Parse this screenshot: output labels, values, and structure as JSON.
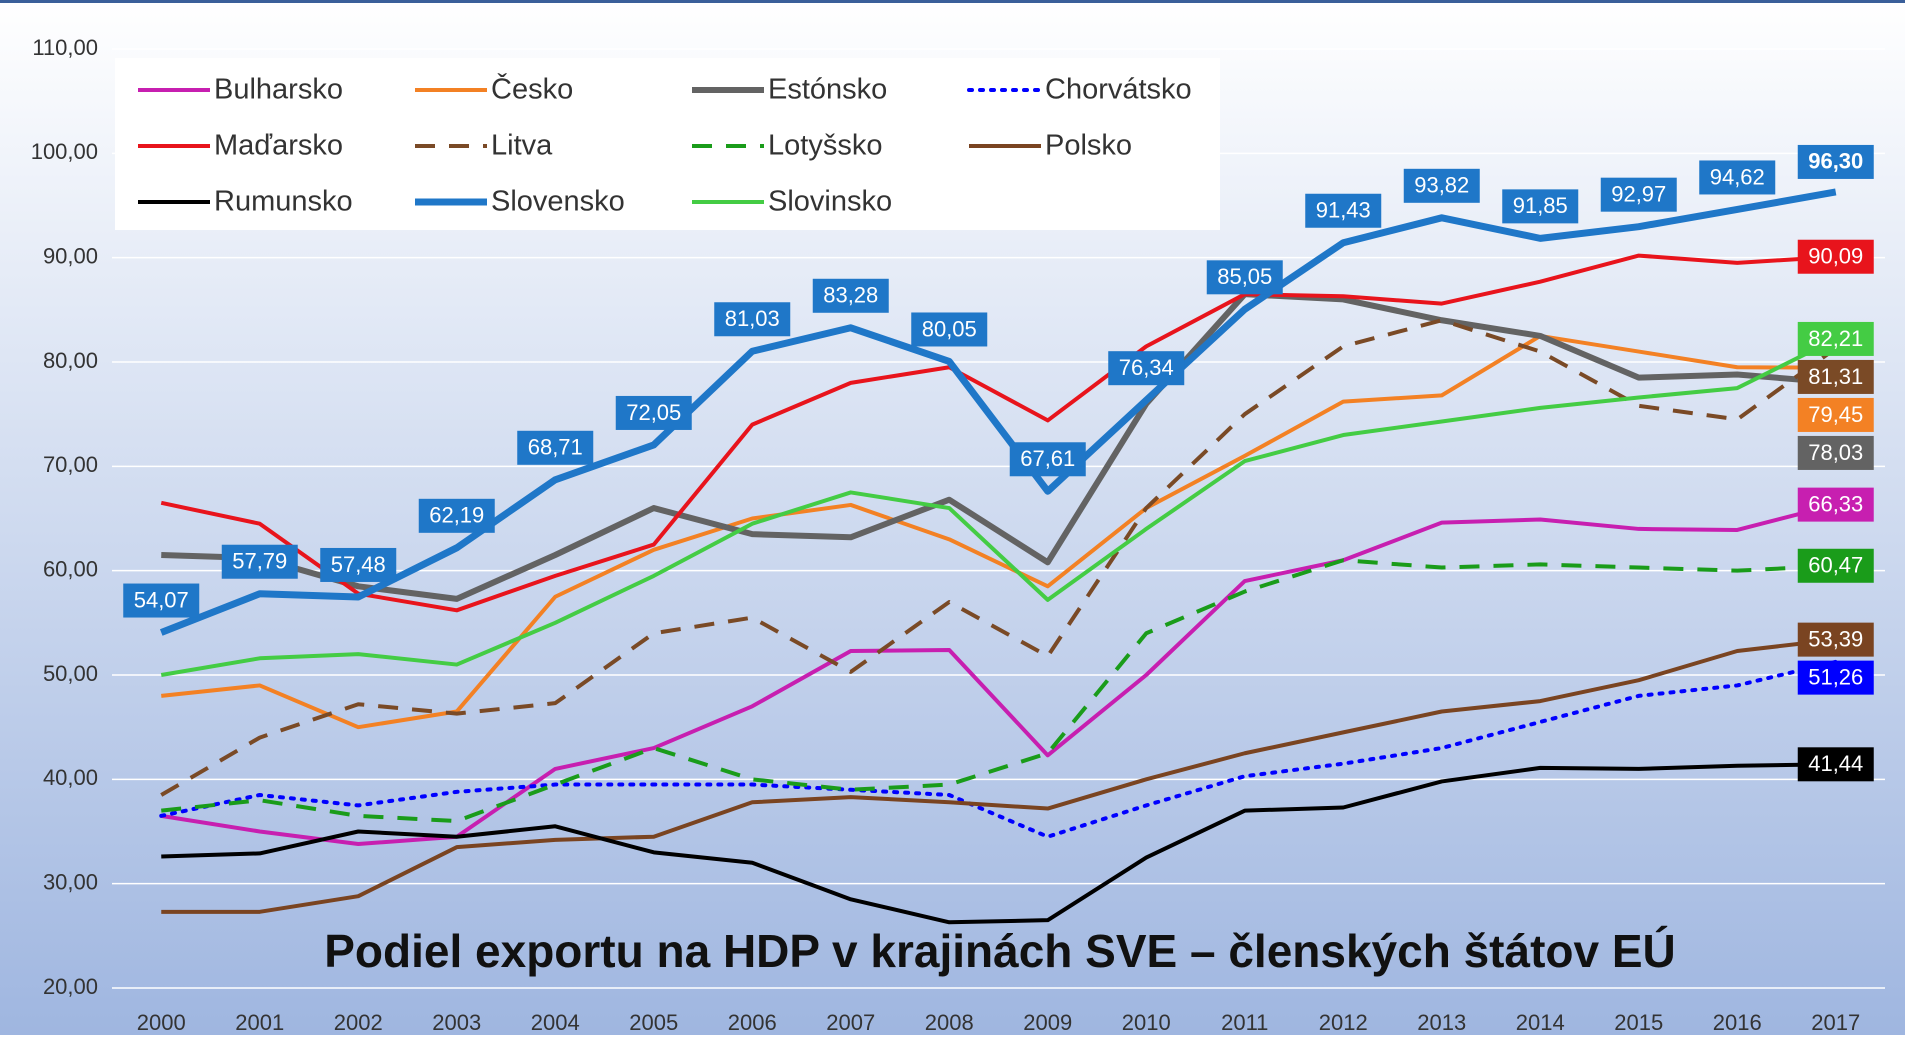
{
  "chart_data": {
    "type": "line",
    "title": "Podiel exportu na HDP v krajinách SVE – členských štátov EÚ",
    "categories": [
      "2000",
      "2001",
      "2002",
      "2003",
      "2004",
      "2005",
      "2006",
      "2007",
      "2008",
      "2009",
      "2010",
      "2011",
      "2012",
      "2013",
      "2014",
      "2015",
      "2016",
      "2017"
    ],
    "ylim": [
      20,
      110
    ],
    "yticks": [
      {
        "value": 20,
        "label": "20,00"
      },
      {
        "value": 30,
        "label": "30,00"
      },
      {
        "value": 40,
        "label": "40,00"
      },
      {
        "value": 50,
        "label": "50,00"
      },
      {
        "value": 60,
        "label": "60,00"
      },
      {
        "value": 70,
        "label": "70,00"
      },
      {
        "value": 80,
        "label": "80,00"
      },
      {
        "value": 90,
        "label": "90,00"
      },
      {
        "value": 100,
        "label": "100,00"
      },
      {
        "value": 110,
        "label": "110,00"
      }
    ],
    "grid": true,
    "legend": "top-left",
    "series": [
      {
        "name": "Bulharsko",
        "color": "#c71fb0",
        "dash": "solid",
        "width": 4,
        "values": [
          36.5,
          35,
          33.8,
          34.5,
          41,
          43,
          47,
          52.3,
          52.4,
          42.3,
          50,
          59,
          61,
          64.6,
          64.9,
          64,
          63.9,
          66.33
        ],
        "value_labels": [
          null,
          null,
          null,
          null,
          null,
          null,
          null,
          null,
          null,
          null,
          null,
          null,
          null,
          null,
          null,
          null,
          null,
          "66,33"
        ]
      },
      {
        "name": "Česko",
        "color": "#f38124",
        "dash": "solid",
        "width": 4,
        "values": [
          48,
          49,
          45,
          46.5,
          57.5,
          62,
          65,
          66.3,
          63,
          58.5,
          66,
          71,
          76.2,
          76.8,
          82.5,
          81,
          79.5,
          79.45
        ],
        "value_labels": [
          null,
          null,
          null,
          null,
          null,
          null,
          null,
          null,
          null,
          null,
          null,
          null,
          null,
          null,
          null,
          null,
          null,
          "79,45"
        ]
      },
      {
        "name": "Estónsko",
        "color": "#636363",
        "dash": "solid",
        "width": 6,
        "values": [
          61.5,
          61.2,
          58.5,
          57.3,
          61.5,
          66,
          63.5,
          63.2,
          66.8,
          60.8,
          76,
          86.5,
          86,
          84,
          82.5,
          78.5,
          78.8,
          78.03
        ],
        "value_labels": [
          null,
          null,
          null,
          null,
          null,
          null,
          null,
          null,
          null,
          null,
          null,
          null,
          null,
          null,
          null,
          null,
          null,
          "78,03"
        ]
      },
      {
        "name": "Chorvátsko",
        "color": "#0000ff",
        "dash": "dotted",
        "width": 4,
        "values": [
          36.5,
          38.5,
          37.5,
          38.8,
          39.5,
          39.5,
          39.5,
          39,
          38.5,
          34.5,
          37.5,
          40.3,
          41.5,
          43,
          45.5,
          48,
          49,
          51.26
        ],
        "value_labels": [
          null,
          null,
          null,
          null,
          null,
          null,
          null,
          null,
          null,
          null,
          null,
          null,
          null,
          null,
          null,
          null,
          null,
          "51,26"
        ]
      },
      {
        "name": "Maďarsko",
        "color": "#e8141c",
        "dash": "solid",
        "width": 4,
        "values": [
          66.5,
          64.5,
          57.8,
          56.2,
          59.5,
          62.5,
          74,
          78,
          79.5,
          74.4,
          81.5,
          86.5,
          86.3,
          85.6,
          87.7,
          90.2,
          89.5,
          90.09
        ],
        "value_labels": [
          null,
          null,
          null,
          null,
          null,
          null,
          null,
          null,
          null,
          null,
          null,
          null,
          null,
          null,
          null,
          null,
          null,
          "90,09"
        ]
      },
      {
        "name": "Litva",
        "color": "#7a4a26",
        "dash": "dashed",
        "width": 4,
        "values": [
          38.5,
          44,
          47.2,
          46.3,
          47.3,
          54,
          55.5,
          50.3,
          57,
          51.8,
          66,
          75,
          81.5,
          84,
          81,
          75.8,
          74.5,
          81.31
        ],
        "value_labels": [
          null,
          null,
          null,
          null,
          null,
          null,
          null,
          null,
          null,
          null,
          null,
          null,
          null,
          null,
          null,
          null,
          null,
          "81,31"
        ]
      },
      {
        "name": "Lotyšsko",
        "color": "#1a9c1a",
        "dash": "dashed",
        "width": 4,
        "values": [
          37,
          38,
          36.5,
          36,
          39.5,
          43,
          40,
          39,
          39.5,
          42.5,
          54,
          58,
          61,
          60.3,
          60.6,
          60.3,
          60,
          60.47
        ],
        "value_labels": [
          null,
          null,
          null,
          null,
          null,
          null,
          null,
          null,
          null,
          null,
          null,
          null,
          null,
          null,
          null,
          null,
          null,
          "60,47"
        ]
      },
      {
        "name": "Polsko",
        "color": "#7a4421",
        "dash": "solid",
        "width": 4,
        "values": [
          27.3,
          27.3,
          28.8,
          33.5,
          34.2,
          34.5,
          37.8,
          38.3,
          37.8,
          37.2,
          40,
          42.5,
          44.5,
          46.5,
          47.5,
          49.5,
          52.3,
          53.39
        ],
        "value_labels": [
          null,
          null,
          null,
          null,
          null,
          null,
          null,
          null,
          null,
          null,
          null,
          null,
          null,
          null,
          null,
          null,
          null,
          "53,39"
        ]
      },
      {
        "name": "Rumunsko",
        "color": "#000000",
        "dash": "solid",
        "width": 4,
        "values": [
          32.6,
          32.9,
          35,
          34.5,
          35.5,
          33,
          32,
          28.5,
          26.3,
          26.5,
          32.5,
          37,
          37.3,
          39.8,
          41.1,
          41,
          41.3,
          41.44
        ],
        "value_labels": [
          null,
          null,
          null,
          null,
          null,
          null,
          null,
          null,
          null,
          null,
          null,
          null,
          null,
          null,
          null,
          null,
          null,
          "41,44"
        ]
      },
      {
        "name": "Slovensko",
        "color": "#1f77c8",
        "dash": "solid",
        "width": 7,
        "values": [
          54.07,
          57.79,
          57.48,
          62.19,
          68.71,
          72.05,
          81.03,
          83.28,
          80.05,
          67.61,
          76.34,
          85.05,
          91.43,
          93.82,
          91.85,
          92.97,
          94.62,
          96.3
        ],
        "value_labels": [
          "54,07",
          "57,79",
          "57,48",
          "62,19",
          "68,71",
          "72,05",
          "81,03",
          "83,28",
          "80,05",
          "67,61",
          "76,34",
          "85,05",
          "91,43",
          "93,82",
          "91,85",
          "92,97",
          "94,62",
          "96,30"
        ]
      },
      {
        "name": "Slovinsko",
        "color": "#44cc44",
        "dash": "solid",
        "width": 4,
        "values": [
          50,
          51.6,
          52,
          51,
          55,
          59.5,
          64.5,
          67.5,
          66,
          57.2,
          64,
          70.5,
          73,
          74.3,
          75.6,
          76.6,
          77.5,
          82.21
        ],
        "value_labels": [
          null,
          null,
          null,
          null,
          null,
          null,
          null,
          null,
          null,
          null,
          null,
          null,
          null,
          null,
          null,
          null,
          null,
          "82,21"
        ]
      }
    ]
  }
}
